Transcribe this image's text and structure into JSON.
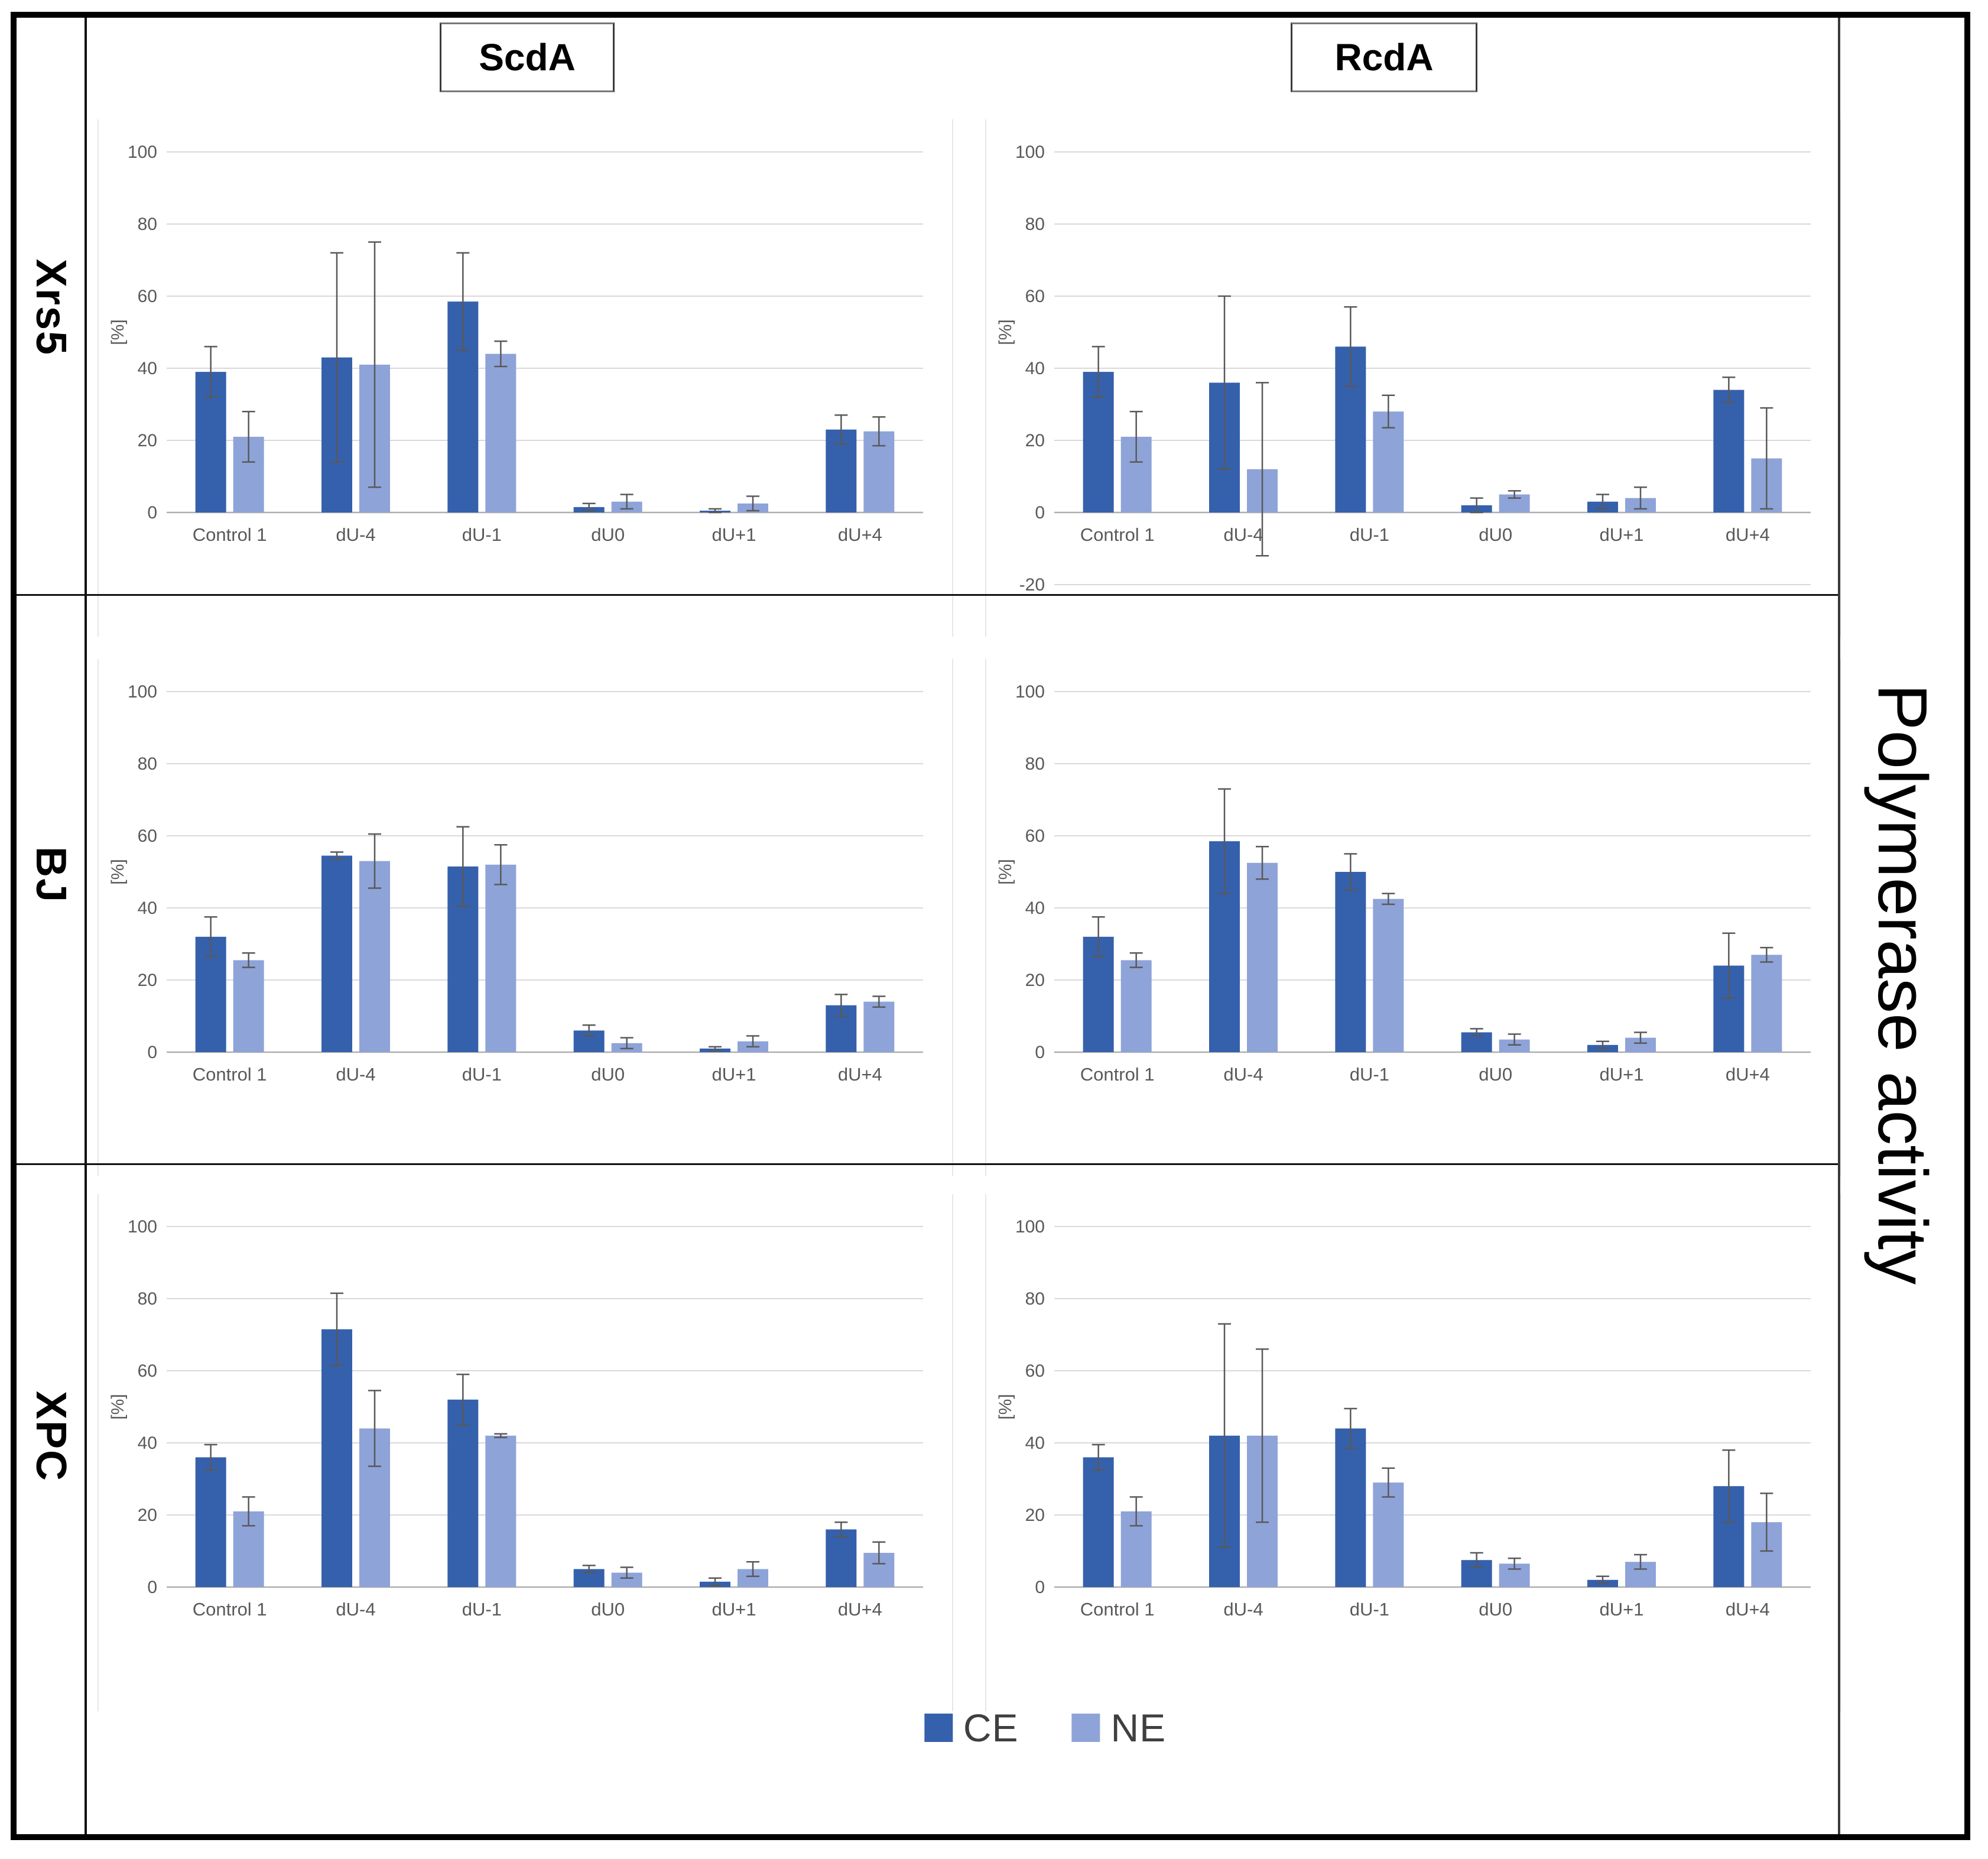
{
  "figure": {
    "column_headers": [
      {
        "label": "ScdA"
      },
      {
        "label": "RcdA"
      }
    ],
    "row_labels": [
      {
        "label": "Xrs5"
      },
      {
        "label": "BJ"
      },
      {
        "label": "XPC"
      }
    ],
    "right_axis_title": "Polymerase activity",
    "legend": {
      "items": [
        {
          "name": "CE",
          "color": "#3560AC"
        },
        {
          "name": "NE",
          "color": "#8EA3D8"
        }
      ]
    },
    "colors": {
      "ce": "#3560AC",
      "ne": "#8EA3D8",
      "error_bar": "#595959",
      "gridline": "#D9D9D9",
      "axis_line": "#AFAFAF",
      "tick_text": "#595959"
    }
  },
  "chart_data": [
    {
      "type": "bar",
      "row": "Xrs5",
      "column": "ScdA",
      "ylabel": "[%]",
      "ylim": [
        0,
        100
      ],
      "yticks": [
        0,
        20,
        40,
        60,
        80,
        100
      ],
      "grid": true,
      "categories": [
        "Control 1",
        "dU-4",
        "dU-1",
        "dU0",
        "dU+1",
        "dU+4"
      ],
      "series": [
        {
          "name": "CE",
          "values": [
            39,
            43,
            58.5,
            1.5,
            0.5,
            23
          ],
          "errors": [
            7,
            29,
            13.5,
            1,
            0.5,
            4
          ]
        },
        {
          "name": "NE",
          "values": [
            21,
            41,
            44,
            3,
            2.5,
            22.5
          ],
          "errors": [
            7,
            34,
            3.5,
            2,
            2,
            4
          ]
        }
      ]
    },
    {
      "type": "bar",
      "row": "Xrs5",
      "column": "RcdA",
      "ylabel": "[%]",
      "ylim": [
        -20,
        100
      ],
      "yticks": [
        -20,
        0,
        20,
        40,
        60,
        80,
        100
      ],
      "grid": true,
      "categories": [
        "Control 1",
        "dU-4",
        "dU-1",
        "dU0",
        "dU+1",
        "dU+4"
      ],
      "series": [
        {
          "name": "CE",
          "values": [
            39,
            36,
            46,
            2,
            3,
            34
          ],
          "errors": [
            7,
            24,
            11,
            2,
            2,
            3.5
          ]
        },
        {
          "name": "NE",
          "values": [
            21,
            12,
            28,
            5,
            4,
            15
          ],
          "errors": [
            7,
            24,
            4.5,
            1,
            3,
            14
          ]
        }
      ]
    },
    {
      "type": "bar",
      "row": "BJ",
      "column": "ScdA",
      "ylabel": "[%]",
      "ylim": [
        0,
        100
      ],
      "yticks": [
        0,
        20,
        40,
        60,
        80,
        100
      ],
      "grid": true,
      "categories": [
        "Control 1",
        "dU-4",
        "dU-1",
        "dU0",
        "dU+1",
        "dU+4"
      ],
      "series": [
        {
          "name": "CE",
          "values": [
            32,
            54.5,
            51.5,
            6,
            1,
            13
          ],
          "errors": [
            5.5,
            1,
            11,
            1.5,
            0.5,
            3
          ]
        },
        {
          "name": "NE",
          "values": [
            25.5,
            53,
            52,
            2.5,
            3,
            14
          ],
          "errors": [
            2,
            7.5,
            5.5,
            1.5,
            1.5,
            1.5
          ]
        }
      ]
    },
    {
      "type": "bar",
      "row": "BJ",
      "column": "RcdA",
      "ylabel": "[%]",
      "ylim": [
        0,
        100
      ],
      "yticks": [
        0,
        20,
        40,
        60,
        80,
        100
      ],
      "grid": true,
      "categories": [
        "Control 1",
        "dU-4",
        "dU-1",
        "dU0",
        "dU+1",
        "dU+4"
      ],
      "series": [
        {
          "name": "CE",
          "values": [
            32,
            58.5,
            50,
            5.5,
            2,
            24
          ],
          "errors": [
            5.5,
            14.5,
            5,
            1,
            1,
            9
          ]
        },
        {
          "name": "NE",
          "values": [
            25.5,
            52.5,
            42.5,
            3.5,
            4,
            27
          ],
          "errors": [
            2,
            4.5,
            1.5,
            1.5,
            1.5,
            2
          ]
        }
      ]
    },
    {
      "type": "bar",
      "row": "XPC",
      "column": "ScdA",
      "ylabel": "[%]",
      "ylim": [
        0,
        100
      ],
      "yticks": [
        0,
        20,
        40,
        60,
        80,
        100
      ],
      "grid": true,
      "categories": [
        "Control 1",
        "dU-4",
        "dU-1",
        "dU0",
        "dU+1",
        "dU+4"
      ],
      "series": [
        {
          "name": "CE",
          "values": [
            36,
            71.5,
            52,
            5,
            1.5,
            16
          ],
          "errors": [
            3.5,
            10,
            7,
            1,
            1,
            2
          ]
        },
        {
          "name": "NE",
          "values": [
            21,
            44,
            42,
            4,
            5,
            9.5
          ],
          "errors": [
            4,
            10.5,
            0.5,
            1.5,
            2,
            3
          ]
        }
      ]
    },
    {
      "type": "bar",
      "row": "XPC",
      "column": "RcdA",
      "ylabel": "[%]",
      "ylim": [
        0,
        100
      ],
      "yticks": [
        0,
        20,
        40,
        60,
        80,
        100
      ],
      "grid": true,
      "categories": [
        "Control 1",
        "dU-4",
        "dU-1",
        "dU0",
        "dU+1",
        "dU+4"
      ],
      "series": [
        {
          "name": "CE",
          "values": [
            36,
            42,
            44,
            7.5,
            2,
            28
          ],
          "errors": [
            3.5,
            31,
            5.5,
            2,
            1,
            10
          ]
        },
        {
          "name": "NE",
          "values": [
            21,
            42,
            29,
            6.5,
            7,
            18
          ],
          "errors": [
            4,
            24,
            4,
            1.5,
            2,
            8
          ]
        }
      ]
    }
  ]
}
